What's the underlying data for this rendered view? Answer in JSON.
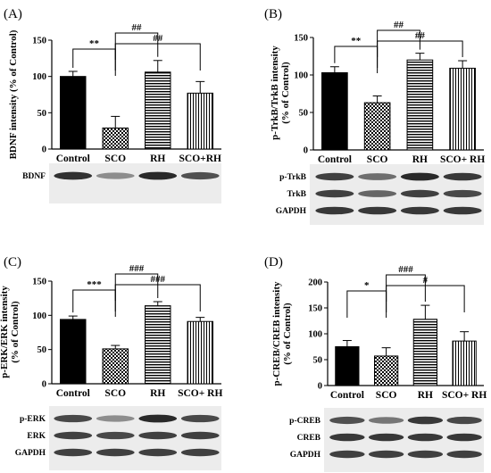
{
  "figure": {
    "panels": [
      {
        "label": "(A)",
        "blot_rows": [
          "BDNF"
        ]
      },
      {
        "label": "(B)",
        "blot_rows": [
          "p-TrkB",
          "TrkB",
          "GAPDH"
        ]
      },
      {
        "label": "(C)",
        "blot_rows": [
          "p-ERK",
          "ERK",
          "GAPDH"
        ]
      },
      {
        "label": "(D)",
        "blot_rows": [
          "p-CREB",
          "CREB",
          "GAPDH"
        ]
      }
    ]
  },
  "chart_data": [
    {
      "type": "bar",
      "title": "",
      "ylabel": "BDNF intensity (% of Control)",
      "ylabel_lines": [
        "BDNF intensity (% of Control)"
      ],
      "ylim": [
        0,
        150
      ],
      "yticks": [
        "0",
        "50",
        "100",
        "150"
      ],
      "categories": [
        "Control",
        "SCO",
        "RH",
        "SCO+RH"
      ],
      "values": [
        100,
        29,
        106,
        77
      ],
      "errors": [
        7,
        16,
        16,
        16
      ],
      "patterns": [
        "solid",
        "checker",
        "hstripe",
        "vstripe"
      ],
      "significance": [
        {
          "from": 0,
          "to": 1,
          "label": "**"
        },
        {
          "from": 1,
          "to": 2,
          "label": "##"
        },
        {
          "from": 1,
          "to": 3,
          "label": "##"
        }
      ]
    },
    {
      "type": "bar",
      "title": "",
      "ylabel": "p-TrkB/TrkB intensity (% of Control)",
      "ylabel_lines": [
        "p-TrkB/TrkB intensity",
        "(% of Control)"
      ],
      "ylim": [
        0,
        150
      ],
      "yticks": [
        "0",
        "50",
        "100",
        "150"
      ],
      "categories": [
        "Control",
        "SCO",
        "RH",
        "SCO+ RH"
      ],
      "values": [
        103,
        63,
        120,
        109
      ],
      "errors": [
        8,
        9,
        9,
        10
      ],
      "patterns": [
        "solid",
        "checker",
        "hstripe",
        "vstripe"
      ],
      "significance": [
        {
          "from": 0,
          "to": 1,
          "label": "**"
        },
        {
          "from": 1,
          "to": 2,
          "label": "##"
        },
        {
          "from": 1,
          "to": 3,
          "label": "##"
        }
      ]
    },
    {
      "type": "bar",
      "title": "",
      "ylabel": "p-ERK/ERK intensity (% of Control)",
      "ylabel_lines": [
        "p-ERK/ERK intensity",
        "(% of Control)"
      ],
      "ylim": [
        0,
        150
      ],
      "yticks": [
        "0",
        "50",
        "100",
        "150"
      ],
      "categories": [
        "Control",
        "SCO",
        "RH",
        "SCO+ RH"
      ],
      "values": [
        94,
        51,
        114,
        91
      ],
      "errors": [
        5,
        5,
        6,
        6
      ],
      "patterns": [
        "solid",
        "checker",
        "hstripe",
        "vstripe"
      ],
      "significance": [
        {
          "from": 0,
          "to": 1,
          "label": "***"
        },
        {
          "from": 1,
          "to": 2,
          "label": "###"
        },
        {
          "from": 1,
          "to": 3,
          "label": "###"
        }
      ]
    },
    {
      "type": "bar",
      "title": "",
      "ylabel": "p-CREB/CREB intensity (% of Control)",
      "ylabel_lines": [
        "p-CREB/CREB intensity",
        "(% of Control)"
      ],
      "ylim": [
        0,
        200
      ],
      "yticks": [
        "0",
        "50",
        "100",
        "150",
        "200"
      ],
      "categories": [
        "Control",
        "SCO",
        "RH",
        "SCO+ RH"
      ],
      "values": [
        75,
        57,
        128,
        86
      ],
      "errors": [
        12,
        16,
        27,
        18
      ],
      "patterns": [
        "solid",
        "checker",
        "hstripe",
        "vstripe"
      ],
      "significance": [
        {
          "from": 0,
          "to": 1,
          "label": "*"
        },
        {
          "from": 1,
          "to": 2,
          "label": "###"
        },
        {
          "from": 1,
          "to": 3,
          "label": "#"
        }
      ]
    }
  ]
}
